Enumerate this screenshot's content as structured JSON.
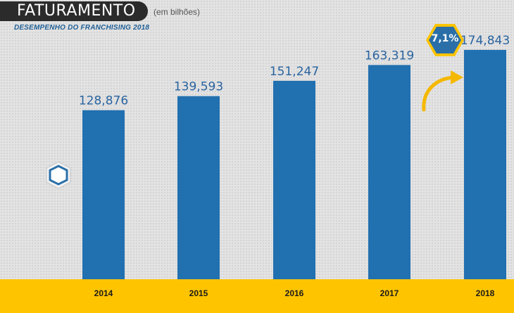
{
  "header": {
    "title": "FATURAMENTO",
    "unit_note": "(em bilhões)",
    "subtitle": "DESEMPENHO DO FRANCHISING 2018"
  },
  "badge": {
    "label": "7,1%",
    "icon": "hexagon-icon"
  },
  "decor": {
    "small_badge_icon": "hexagon-icon",
    "arrow_icon": "curved-arrow-icon"
  },
  "colors": {
    "bar": "#2170b0",
    "value_label": "#2a64a0",
    "axis_band": "#ffc400",
    "badge_fill": "#2a6fa8",
    "badge_border": "#ffc400",
    "arrow": "#f5b800"
  },
  "chart_data": {
    "type": "bar",
    "categories": [
      "2014",
      "2015",
      "2016",
      "2017",
      "2018"
    ],
    "values": [
      128.876,
      139.593,
      151.247,
      163.319,
      174.843
    ],
    "value_labels": [
      "128,876",
      "139,593",
      "151,247",
      "163,319",
      "174,843"
    ],
    "title": "FATURAMENTO",
    "ylabel": "",
    "xlabel": "",
    "ylim": [
      0,
      200
    ],
    "grid": false
  }
}
